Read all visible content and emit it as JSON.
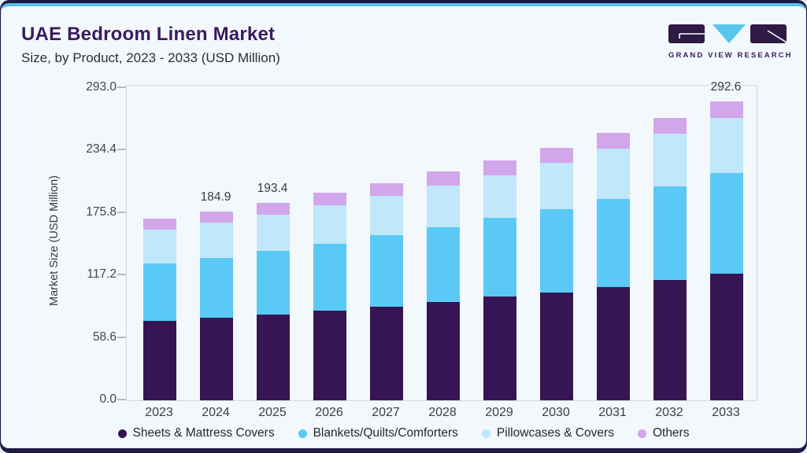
{
  "header": {
    "title": "UAE Bedroom Linen Market",
    "subtitle": "Size, by Product, 2023 - 2033 (USD Million)",
    "logo_text": "GRAND VIEW RESEARCH"
  },
  "brand_colors": {
    "accent_purple": "#3a1b5f",
    "accent_blue": "#57c1ee",
    "frame_navy": "#1f1a42",
    "card_background": "#f2f8fb"
  },
  "chart_data": {
    "type": "bar",
    "stacked": true,
    "title": "UAE Bedroom Linen Market Size, by Product, 2023 - 2033 (USD Million)",
    "xlabel": "",
    "ylabel": "Market Size (USD Million)",
    "ylim": [
      0,
      293.0
    ],
    "yticks": [
      "0.0",
      "58.6",
      "117.2",
      "175.8",
      "234.4",
      "293.0"
    ],
    "grid": false,
    "legend_position": "bottom",
    "categories": [
      "2023",
      "2024",
      "2025",
      "2026",
      "2027",
      "2028",
      "2029",
      "2030",
      "2031",
      "2032",
      "2033"
    ],
    "series": [
      {
        "name": "Sheets & Mattress Covers",
        "color": "#351553",
        "values": [
          78.0,
          80.5,
          83.9,
          87.8,
          91.6,
          95.9,
          101.6,
          105.5,
          111.1,
          117.8,
          124.2
        ]
      },
      {
        "name": "Blankets/Quilts/Comforters",
        "color": "#5bc9f5",
        "values": [
          55.6,
          59.0,
          62.6,
          65.4,
          69.7,
          73.1,
          76.9,
          81.5,
          85.9,
          91.5,
          98.2
        ]
      },
      {
        "name": "Pillowcases & Covers",
        "color": "#c0e7fa",
        "values": [
          33.4,
          34.7,
          35.3,
          37.6,
          39.0,
          41.1,
          41.8,
          45.4,
          49.4,
          51.2,
          53.8
        ]
      },
      {
        "name": "Others",
        "color": "#d2a6ea",
        "values": [
          11.0,
          10.7,
          11.6,
          12.4,
          11.8,
          13.5,
          14.6,
          14.8,
          15.4,
          16.0,
          16.4
        ]
      }
    ],
    "totals": [
      178.0,
      184.9,
      193.4,
      203.2,
      212.1,
      223.6,
      234.9,
      247.2,
      261.8,
      276.5,
      292.6
    ],
    "value_labels": [
      "",
      "184.9",
      "193.4",
      "",
      "",
      "",
      "",
      "",
      "",
      "",
      "292.6"
    ]
  }
}
